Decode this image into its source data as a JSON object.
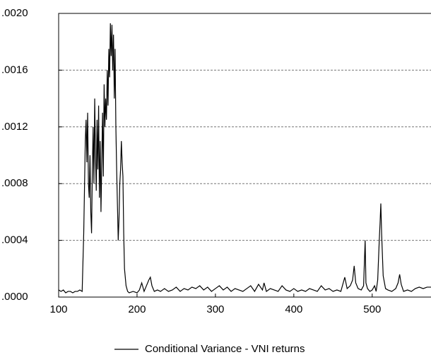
{
  "chart_data": {
    "type": "line",
    "x": [
      100,
      103,
      106,
      109,
      112,
      115,
      118,
      121,
      124,
      127,
      130,
      132,
      134,
      135,
      136,
      137,
      138,
      139,
      140,
      141,
      142,
      143,
      144,
      145,
      146,
      147,
      148,
      149,
      150,
      151,
      152,
      153,
      154,
      155,
      156,
      157,
      158,
      159,
      160,
      161,
      162,
      163,
      164,
      165,
      166,
      167,
      168,
      169,
      170,
      171,
      172,
      173,
      174,
      175,
      176,
      177,
      178,
      179,
      180,
      181,
      182,
      183,
      184,
      186,
      188,
      190,
      195,
      200,
      203,
      206,
      209,
      212,
      215,
      217,
      219,
      222,
      226,
      230,
      235,
      240,
      245,
      250,
      255,
      260,
      265,
      270,
      275,
      280,
      285,
      290,
      295,
      300,
      305,
      310,
      315,
      320,
      325,
      330,
      335,
      340,
      345,
      350,
      355,
      360,
      362,
      365,
      370,
      375,
      380,
      385,
      390,
      395,
      400,
      405,
      410,
      415,
      420,
      425,
      430,
      435,
      440,
      445,
      450,
      455,
      460,
      465,
      468,
      472,
      475,
      477,
      479,
      482,
      486,
      489,
      491,
      492,
      494,
      497,
      500,
      503,
      505,
      507,
      509,
      510,
      511,
      512,
      514,
      517,
      520,
      525,
      530,
      533,
      535,
      537,
      540,
      545,
      550,
      555,
      560,
      565,
      570,
      575
    ],
    "series": [
      {
        "name": "Conditional Variance - VNI returns",
        "color": "#000000",
        "values": [
          5e-05,
          4e-05,
          5e-05,
          3e-05,
          4e-05,
          4e-05,
          3e-05,
          4e-05,
          4e-05,
          5e-05,
          4e-05,
          0.00045,
          0.0011,
          0.00125,
          0.00095,
          0.0013,
          0.0008,
          0.0007,
          0.001,
          0.0006,
          0.00045,
          0.0009,
          0.0012,
          0.0008,
          0.0014,
          0.001,
          0.00075,
          0.00125,
          0.0009,
          0.00135,
          0.0007,
          0.0011,
          0.0006,
          0.00095,
          0.0013,
          0.00085,
          0.0015,
          0.0012,
          0.0014,
          0.00125,
          0.0016,
          0.00135,
          0.00175,
          0.00155,
          0.00193,
          0.0017,
          0.00192,
          0.0016,
          0.00185,
          0.0014,
          0.00175,
          0.0012,
          0.0009,
          0.00065,
          0.0004,
          0.00055,
          0.0008,
          0.0009,
          0.0011,
          0.00095,
          0.00085,
          0.00045,
          0.0002,
          8e-05,
          4e-05,
          3e-05,
          4e-05,
          3e-05,
          5e-05,
          0.0001,
          4e-05,
          8e-05,
          0.00012,
          0.00014,
          8e-05,
          4e-05,
          5e-05,
          4e-05,
          6e-05,
          4e-05,
          5e-05,
          7e-05,
          4e-05,
          6e-05,
          5e-05,
          7e-05,
          6e-05,
          8e-05,
          5e-05,
          7e-05,
          4e-05,
          6e-05,
          8e-05,
          5e-05,
          7e-05,
          4e-05,
          6e-05,
          5e-05,
          4e-05,
          6e-05,
          8e-05,
          4e-05,
          9e-05,
          5e-05,
          0.0001,
          4e-05,
          6e-05,
          5e-05,
          4e-05,
          8e-05,
          5e-05,
          4e-05,
          6e-05,
          4e-05,
          5e-05,
          4e-05,
          6e-05,
          5e-05,
          4e-05,
          8e-05,
          5e-05,
          6e-05,
          4e-05,
          5e-05,
          4e-05,
          0.00014,
          6e-05,
          8e-05,
          0.00012,
          0.00022,
          0.0001,
          6e-05,
          5e-05,
          8e-05,
          0.0004,
          0.0001,
          6e-05,
          4e-05,
          5e-05,
          8e-05,
          4e-05,
          0.00012,
          0.0004,
          0.00052,
          0.00066,
          0.00045,
          0.00015,
          6e-05,
          5e-05,
          4e-05,
          6e-05,
          0.0001,
          0.00016,
          9e-05,
          4e-05,
          5e-05,
          4e-05,
          6e-05,
          7e-05,
          6e-05,
          7e-05,
          7e-05
        ]
      }
    ],
    "xlim": [
      100,
      575
    ],
    "xticks": [
      100,
      200,
      300,
      400,
      500
    ],
    "ylim": [
      0,
      0.002
    ],
    "yticks": [
      {
        "value": 0,
        "label": ".0000"
      },
      {
        "value": 0.0004,
        "label": ".0004"
      },
      {
        "value": 0.0008,
        "label": ".0008"
      },
      {
        "value": 0.0012,
        "label": ".0012"
      },
      {
        "value": 0.0016,
        "label": ".0016"
      },
      {
        "value": 0.002,
        "label": ".0020"
      }
    ],
    "grid": true,
    "legend": "bottom"
  }
}
